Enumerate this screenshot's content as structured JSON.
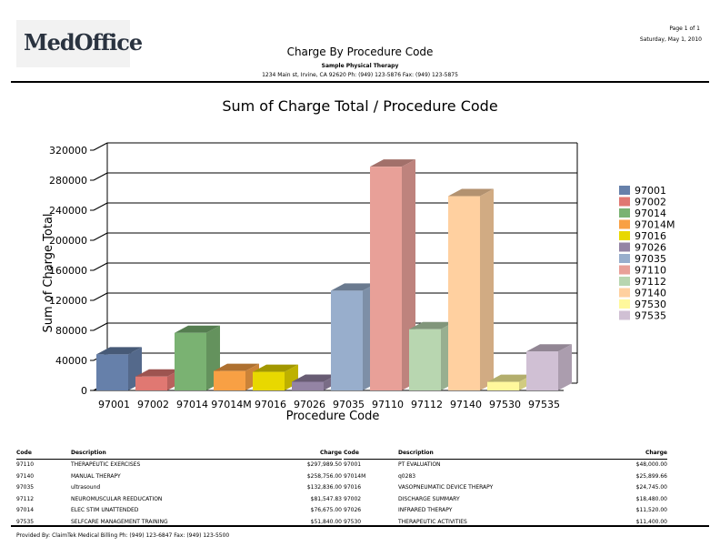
{
  "header": {
    "logo_text": "MedOffice",
    "page": "Page 1 of 1",
    "date": "Saturday, May 1, 2010",
    "title": "Charge By Procedure Code",
    "practice": "Sample Physical Therapy",
    "address": "1234 Main st, Irvine, CA 92620 Ph: (949) 123-5876 Fax: (949) 123-5875"
  },
  "chart_data": {
    "type": "bar",
    "title": "Sum of Charge Total / Procedure Code",
    "xlabel": "Procedure Code",
    "ylabel": "Sum of Charge Total",
    "ylim": [
      0,
      320000
    ],
    "yticks": [
      "0",
      "40000",
      "80000",
      "120000",
      "160000",
      "200000",
      "240000",
      "280000",
      "320000"
    ],
    "grid": true,
    "legend": "right",
    "style": "3d",
    "categories": [
      "97001",
      "97002",
      "97014",
      "97014M",
      "97016",
      "97026",
      "97035",
      "97110",
      "97112",
      "97140",
      "97530",
      "97535"
    ],
    "values": [
      48000,
      18480,
      76675,
      25899.66,
      24745,
      11520,
      132836,
      297989.5,
      81547.83,
      258756,
      11400,
      51840
    ],
    "colors": [
      "#6680aa",
      "#e07872",
      "#7ab272",
      "#f8a044",
      "#e8d800",
      "#9484a4",
      "#98aecc",
      "#e8a098",
      "#b8d6b0",
      "#ffd0a0",
      "#fff89c",
      "#d0c0d4"
    ]
  },
  "table": {
    "headers": [
      "Code",
      "Description",
      "Charge",
      "Code",
      "Description",
      "Charge"
    ],
    "rows": [
      [
        "97110",
        "THERAPEUTIC EXERCISES",
        "$297,989.50",
        "97001",
        "PT EVALUATION",
        "$48,000.00"
      ],
      [
        "97140",
        "MANUAL THERAPY",
        "$258,756.00",
        "97014M",
        "q0283",
        "$25,899.66"
      ],
      [
        "97035",
        "ultrasound",
        "$132,836.00",
        "97016",
        "VASOPNEUMATIC DEVICE THERAPY",
        "$24,745.00"
      ],
      [
        "97112",
        "NEUROMUSCULAR REEDUCATION",
        "$81,547.83",
        "97002",
        "DISCHARGE SUMMARY",
        "$18,480.00"
      ],
      [
        "97014",
        "ELEC STIM UNATTENDED",
        "$76,675.00",
        "97026",
        "INFRARED THERAPY",
        "$11,520.00"
      ],
      [
        "97535",
        "SELFCARE MANAGEMENT TRAINING",
        "$51,840.00",
        "97530",
        "THERAPEUTIC ACTIVITIES",
        "$11,400.00"
      ]
    ]
  },
  "footer": {
    "text": "Provided By: ClaimTek Medical Billing Ph: (949) 123-6847 Fax: (949) 123-5500"
  }
}
